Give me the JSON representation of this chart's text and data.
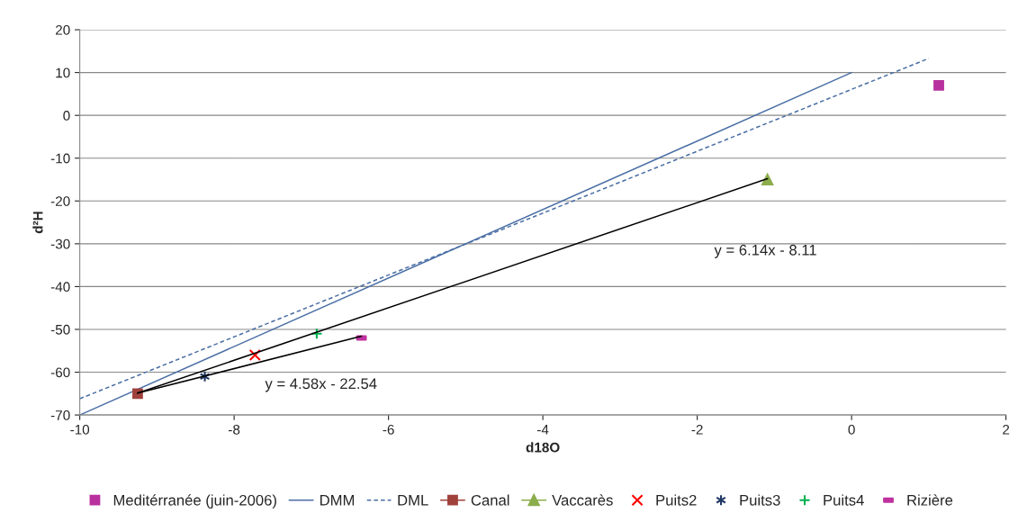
{
  "chart_data": {
    "type": "scatter",
    "xlabel": "d18O",
    "ylabel": "d²H",
    "xlim": [
      -10,
      2
    ],
    "ylim": [
      -70,
      20
    ],
    "xticks": [
      -10,
      -8,
      -6,
      -4,
      -2,
      0,
      2
    ],
    "yticks": [
      -70,
      -60,
      -50,
      -40,
      -30,
      -20,
      -10,
      0,
      10,
      20
    ],
    "grid": "y",
    "legend": "bottom",
    "series": [
      {
        "name": "Meditérranée (juin-2006)",
        "marker": "square",
        "color": "#b8309e",
        "x": [
          1.13
        ],
        "values": [
          7
        ]
      },
      {
        "name": "DMM",
        "type": "line",
        "marker": "none",
        "line_style": "solid",
        "color": "#4a6fa5",
        "x": [
          -10,
          0
        ],
        "values": [
          -70,
          10
        ]
      },
      {
        "name": "DML",
        "type": "line",
        "marker": "none",
        "line_style": "dashed",
        "color": "#4a6fa5",
        "x": [
          -10,
          1.0
        ],
        "values": [
          -66.2,
          13.3
        ]
      },
      {
        "name": "Canal",
        "type": "line",
        "marker": "square",
        "line_style": "solid",
        "color": "#a0413c",
        "x": [
          -9.25
        ],
        "values": [
          -65
        ]
      },
      {
        "name": "Vaccarès",
        "type": "line",
        "marker": "triangle",
        "line_style": "solid",
        "color": "#8cad4b",
        "x": [
          -1.09
        ],
        "values": [
          -15
        ]
      },
      {
        "name": "Puits2",
        "marker": "cross",
        "color": "#ff0000",
        "x": [
          -7.73
        ],
        "values": [
          -56
        ]
      },
      {
        "name": "Puits3",
        "marker": "cross",
        "color": "#1f3864",
        "x": [
          -8.38
        ],
        "values": [
          -61
        ]
      },
      {
        "name": "Puits4",
        "marker": "cross",
        "color": "#00b050",
        "x": [
          -6.93
        ],
        "values": [
          -51
        ]
      },
      {
        "name": "Rizière",
        "color": "#c0309f",
        "x": [
          -6.35
        ],
        "values": [
          -52
        ]
      },
      {
        "type": "line",
        "marker": "none",
        "line_style": "solid",
        "color": "#000000",
        "x": [
          -9.25,
          -1.09
        ],
        "values": [
          -64.9,
          -14.8
        ]
      },
      {
        "type": "line",
        "marker": "none",
        "line_style": "solid",
        "color": "#000000",
        "x": [
          -9.25,
          -6.35
        ],
        "values": [
          -64.9,
          -51.6
        ]
      }
    ],
    "annotations": [
      "y = 6.14x - 8.11",
      "y = 4.58x - 22.54"
    ]
  }
}
